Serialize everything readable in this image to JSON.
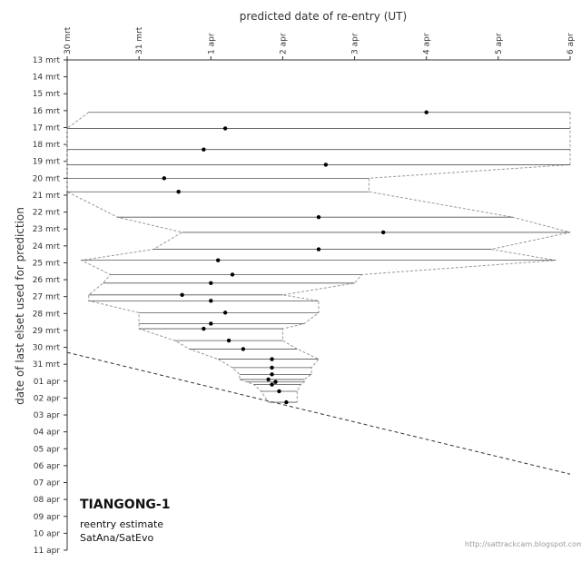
{
  "chart_data": {
    "type": "scatter",
    "title": "predicted date of re-entry (UT)",
    "xlabel": "predicted date of re-entry (UT)",
    "ylabel": "date of last elset used for prediction",
    "x_tick_labels": [
      "30 mrt",
      "31 mrt",
      "1 apr",
      "2 apr",
      "3 apr",
      "4 apr",
      "5 apr",
      "6 apr"
    ],
    "y_tick_labels": [
      "13 mrt",
      "14 mrt",
      "15 mrt",
      "16 mrt",
      "17 mrt",
      "18 mrt",
      "19 mrt",
      "20 mrt",
      "21 mrt",
      "22 mrt",
      "23 mrt",
      "24 mrt",
      "25 mrt",
      "26 mrt",
      "27 mrt",
      "28 mrt",
      "29 mrt",
      "30 mrt",
      "31 mrt",
      "01 apr",
      "02 apr",
      "03 apr",
      "04 apr",
      "05 apr",
      "06 apr",
      "07 apr",
      "08 apr",
      "09 apr",
      "10 apr",
      "11 apr"
    ],
    "xlim": [
      0,
      7
    ],
    "ylim": [
      0,
      29
    ],
    "x_units": "days since 30 mrt 00:00 UT",
    "y_units": "days since 13 mrt",
    "predictions": [
      {
        "y": 3.1,
        "x": 5.0,
        "lo": 0.3,
        "hi": 7.0
      },
      {
        "y": 4.05,
        "x": 2.2,
        "lo": 0.0,
        "hi": 7.0
      },
      {
        "y": 5.3,
        "x": 1.9,
        "lo": 0.0,
        "hi": 7.0
      },
      {
        "y": 6.2,
        "x": 3.6,
        "lo": 0.0,
        "hi": 7.0
      },
      {
        "y": 7.0,
        "x": 1.35,
        "lo": 0.0,
        "hi": 4.2
      },
      {
        "y": 7.8,
        "x": 1.55,
        "lo": 0.0,
        "hi": 4.2
      },
      {
        "y": 9.3,
        "x": 3.5,
        "lo": 0.7,
        "hi": 6.2
      },
      {
        "y": 10.2,
        "x": 4.4,
        "lo": 1.6,
        "hi": 7.0
      },
      {
        "y": 11.2,
        "x": 3.5,
        "lo": 1.2,
        "hi": 5.9
      },
      {
        "y": 11.85,
        "x": 2.1,
        "lo": 0.2,
        "hi": 6.8
      },
      {
        "y": 12.7,
        "x": 2.3,
        "lo": 0.6,
        "hi": 4.1
      },
      {
        "y": 13.2,
        "x": 2.0,
        "lo": 0.5,
        "hi": 4.0
      },
      {
        "y": 13.9,
        "x": 1.6,
        "lo": 0.3,
        "hi": 3.0
      },
      {
        "y": 14.25,
        "x": 2.0,
        "lo": 0.3,
        "hi": 3.5
      },
      {
        "y": 14.95,
        "x": 2.2,
        "lo": 1.0,
        "hi": 3.5
      },
      {
        "y": 15.6,
        "x": 2.0,
        "lo": 1.0,
        "hi": 3.3
      },
      {
        "y": 15.9,
        "x": 1.9,
        "lo": 1.0,
        "hi": 3.0
      },
      {
        "y": 16.6,
        "x": 2.25,
        "lo": 1.5,
        "hi": 3.0
      },
      {
        "y": 17.1,
        "x": 2.45,
        "lo": 1.7,
        "hi": 3.2
      },
      {
        "y": 17.7,
        "x": 2.85,
        "lo": 2.1,
        "hi": 3.5
      },
      {
        "y": 18.2,
        "x": 2.85,
        "lo": 2.3,
        "hi": 3.4
      },
      {
        "y": 18.6,
        "x": 2.85,
        "lo": 2.4,
        "hi": 3.4
      },
      {
        "y": 18.9,
        "x": 2.8,
        "lo": 2.4,
        "hi": 3.3
      },
      {
        "y": 19.05,
        "x": 2.9,
        "lo": 2.5,
        "hi": 3.3
      },
      {
        "y": 19.2,
        "x": 2.85,
        "lo": 2.6,
        "hi": 3.25
      },
      {
        "y": 19.6,
        "x": 2.95,
        "lo": 2.7,
        "hi": 3.2
      },
      {
        "y": 20.25,
        "x": 3.05,
        "lo": 2.8,
        "hi": 3.2
      }
    ],
    "reference_line": {
      "x0": 0.0,
      "y0": 17.3,
      "x1": 7.0,
      "y1": 24.5
    },
    "grid": false,
    "legend": "none"
  },
  "annotation": {
    "title": "TIANGONG-1",
    "line1": "reentry estimate",
    "line2": "SatAna/SatEvo"
  },
  "credit": "http://sattrackcam.blogspot.com",
  "colors": {
    "horizontal_line": "#555555",
    "envelope": "#999999",
    "marker": "#000000",
    "reference_line": "#333333",
    "axis": "#333333"
  }
}
